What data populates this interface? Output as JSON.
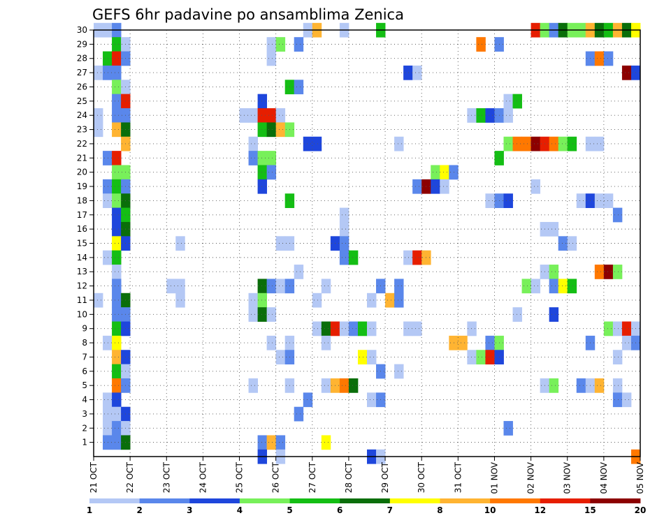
{
  "chart_data": {
    "type": "heatmap",
    "title": "GEFS 6hr padavine po ansamblima Zenica",
    "xlabel": "",
    "ylabel": "",
    "x_tick_labels": [
      "21 OCT",
      "22 OCT",
      "23 OCT",
      "24 OCT",
      "25 OCT",
      "26 OCT",
      "27 OCT",
      "28 OCT",
      "29 OCT",
      "30 OCT",
      "31 OCT",
      "01 NOV",
      "02 NOV",
      "03 NOV",
      "04 NOV",
      "05 NOV"
    ],
    "y_tick_labels": [
      "1",
      "2",
      "3",
      "4",
      "5",
      "6",
      "7",
      "8",
      "9",
      "10",
      "11",
      "12",
      "13",
      "14",
      "15",
      "16",
      "17",
      "18",
      "19",
      "20",
      "21",
      "22",
      "23",
      "24",
      "25",
      "26",
      "27",
      "28",
      "29",
      "30"
    ],
    "xlim_steps": [
      0,
      60
    ],
    "ylim": [
      0,
      30
    ],
    "grid": true,
    "colorbar": {
      "position": "bottom",
      "labels": [
        "1",
        "2",
        "3",
        "4",
        "5",
        "6",
        "7",
        "8",
        "10",
        "12",
        "15",
        "20"
      ],
      "colors": [
        "#b4c8f5",
        "#5a87eb",
        "#1e46dc",
        "#78f05a",
        "#14be14",
        "#0a6e0a",
        "#ffff00",
        "#ffb432",
        "#ff7800",
        "#e61e00",
        "#8c0000"
      ]
    },
    "cells": [
      [
        30,
        0,
        1
      ],
      [
        30,
        1,
        1
      ],
      [
        30,
        2,
        2
      ],
      [
        30,
        23,
        1
      ],
      [
        30,
        24,
        8
      ],
      [
        30,
        27,
        1
      ],
      [
        30,
        31,
        5
      ],
      [
        30,
        48,
        10
      ],
      [
        30,
        49,
        4
      ],
      [
        30,
        50,
        2
      ],
      [
        30,
        51,
        6
      ],
      [
        30,
        52,
        4
      ],
      [
        30,
        53,
        4
      ],
      [
        30,
        54,
        8
      ],
      [
        30,
        55,
        6
      ],
      [
        30,
        56,
        5
      ],
      [
        30,
        57,
        8
      ],
      [
        30,
        58,
        6
      ],
      [
        30,
        59,
        7
      ],
      [
        29,
        2,
        5
      ],
      [
        29,
        3,
        1
      ],
      [
        29,
        19,
        1
      ],
      [
        29,
        20,
        4
      ],
      [
        29,
        22,
        2
      ],
      [
        29,
        42,
        9
      ],
      [
        29,
        44,
        2
      ],
      [
        28,
        1,
        5
      ],
      [
        28,
        2,
        10
      ],
      [
        28,
        3,
        2
      ],
      [
        28,
        19,
        1
      ],
      [
        28,
        54,
        2
      ],
      [
        28,
        55,
        9
      ],
      [
        28,
        56,
        2
      ],
      [
        27,
        0,
        1
      ],
      [
        27,
        1,
        2
      ],
      [
        27,
        2,
        2
      ],
      [
        27,
        34,
        3
      ],
      [
        27,
        35,
        1
      ],
      [
        27,
        58,
        11
      ],
      [
        27,
        59,
        3
      ],
      [
        26,
        2,
        4
      ],
      [
        26,
        3,
        1
      ],
      [
        26,
        21,
        5
      ],
      [
        26,
        22,
        2
      ],
      [
        25,
        2,
        2
      ],
      [
        25,
        3,
        10
      ],
      [
        25,
        18,
        3
      ],
      [
        25,
        45,
        1
      ],
      [
        25,
        46,
        5
      ],
      [
        24,
        0,
        1
      ],
      [
        24,
        2,
        2
      ],
      [
        24,
        3,
        2
      ],
      [
        24,
        16,
        1
      ],
      [
        24,
        17,
        1
      ],
      [
        24,
        18,
        10
      ],
      [
        24,
        19,
        10
      ],
      [
        24,
        20,
        1
      ],
      [
        24,
        41,
        1
      ],
      [
        24,
        42,
        5
      ],
      [
        24,
        43,
        3
      ],
      [
        24,
        44,
        2
      ],
      [
        24,
        45,
        1
      ],
      [
        23,
        0,
        1
      ],
      [
        23,
        2,
        8
      ],
      [
        23,
        3,
        6
      ],
      [
        23,
        18,
        5
      ],
      [
        23,
        19,
        6
      ],
      [
        23,
        20,
        8
      ],
      [
        23,
        21,
        4
      ],
      [
        22,
        3,
        8
      ],
      [
        22,
        17,
        1
      ],
      [
        22,
        23,
        3
      ],
      [
        22,
        24,
        3
      ],
      [
        22,
        33,
        1
      ],
      [
        22,
        45,
        4
      ],
      [
        22,
        46,
        9
      ],
      [
        22,
        47,
        9
      ],
      [
        22,
        48,
        11
      ],
      [
        22,
        49,
        10
      ],
      [
        22,
        50,
        9
      ],
      [
        22,
        51,
        4
      ],
      [
        22,
        52,
        5
      ],
      [
        22,
        54,
        1
      ],
      [
        22,
        55,
        1
      ],
      [
        21,
        1,
        2
      ],
      [
        21,
        2,
        10
      ],
      [
        21,
        17,
        2
      ],
      [
        21,
        18,
        4
      ],
      [
        21,
        19,
        4
      ],
      [
        21,
        44,
        5
      ],
      [
        20,
        2,
        4
      ],
      [
        20,
        3,
        4
      ],
      [
        20,
        18,
        5
      ],
      [
        20,
        19,
        2
      ],
      [
        20,
        37,
        4
      ],
      [
        20,
        38,
        7
      ],
      [
        20,
        39,
        2
      ],
      [
        19,
        1,
        2
      ],
      [
        19,
        2,
        5
      ],
      [
        19,
        3,
        2
      ],
      [
        19,
        18,
        3
      ],
      [
        19,
        35,
        2
      ],
      [
        19,
        36,
        11
      ],
      [
        19,
        37,
        3
      ],
      [
        19,
        38,
        1
      ],
      [
        19,
        48,
        1
      ],
      [
        18,
        1,
        1
      ],
      [
        18,
        2,
        4
      ],
      [
        18,
        3,
        6
      ],
      [
        18,
        21,
        5
      ],
      [
        18,
        43,
        1
      ],
      [
        18,
        44,
        2
      ],
      [
        18,
        45,
        3
      ],
      [
        18,
        53,
        1
      ],
      [
        18,
        54,
        3
      ],
      [
        18,
        55,
        1
      ],
      [
        18,
        56,
        1
      ],
      [
        17,
        2,
        3
      ],
      [
        17,
        3,
        5
      ],
      [
        17,
        27,
        1
      ],
      [
        17,
        57,
        2
      ],
      [
        16,
        2,
        3
      ],
      [
        16,
        3,
        6
      ],
      [
        16,
        27,
        1
      ],
      [
        16,
        49,
        1
      ],
      [
        16,
        50,
        1
      ],
      [
        15,
        2,
        7
      ],
      [
        15,
        3,
        3
      ],
      [
        15,
        9,
        1
      ],
      [
        15,
        20,
        1
      ],
      [
        15,
        21,
        1
      ],
      [
        15,
        26,
        3
      ],
      [
        15,
        27,
        2
      ],
      [
        15,
        51,
        2
      ],
      [
        15,
        52,
        1
      ],
      [
        14,
        1,
        1
      ],
      [
        14,
        2,
        5
      ],
      [
        14,
        27,
        2
      ],
      [
        14,
        28,
        5
      ],
      [
        14,
        34,
        1
      ],
      [
        14,
        35,
        10
      ],
      [
        14,
        36,
        8
      ],
      [
        13,
        2,
        1
      ],
      [
        13,
        22,
        1
      ],
      [
        13,
        49,
        1
      ],
      [
        13,
        50,
        4
      ],
      [
        13,
        55,
        9
      ],
      [
        13,
        56,
        11
      ],
      [
        13,
        57,
        4
      ],
      [
        12,
        2,
        2
      ],
      [
        12,
        8,
        1
      ],
      [
        12,
        9,
        1
      ],
      [
        12,
        18,
        6
      ],
      [
        12,
        19,
        2
      ],
      [
        12,
        20,
        1
      ],
      [
        12,
        21,
        2
      ],
      [
        12,
        25,
        1
      ],
      [
        12,
        31,
        2
      ],
      [
        12,
        33,
        2
      ],
      [
        12,
        47,
        4
      ],
      [
        12,
        48,
        1
      ],
      [
        12,
        50,
        2
      ],
      [
        12,
        51,
        7
      ],
      [
        12,
        52,
        5
      ],
      [
        11,
        0,
        1
      ],
      [
        11,
        2,
        2
      ],
      [
        11,
        3,
        6
      ],
      [
        11,
        9,
        1
      ],
      [
        11,
        17,
        1
      ],
      [
        11,
        18,
        4
      ],
      [
        11,
        24,
        1
      ],
      [
        11,
        30,
        1
      ],
      [
        11,
        32,
        8
      ],
      [
        11,
        33,
        2
      ],
      [
        10,
        2,
        2
      ],
      [
        10,
        3,
        2
      ],
      [
        10,
        17,
        1
      ],
      [
        10,
        18,
        6
      ],
      [
        10,
        19,
        1
      ],
      [
        10,
        46,
        1
      ],
      [
        10,
        50,
        3
      ],
      [
        9,
        2,
        5
      ],
      [
        9,
        3,
        3
      ],
      [
        9,
        24,
        1
      ],
      [
        9,
        25,
        6
      ],
      [
        9,
        26,
        10
      ],
      [
        9,
        27,
        1
      ],
      [
        9,
        28,
        2
      ],
      [
        9,
        29,
        5
      ],
      [
        9,
        30,
        1
      ],
      [
        9,
        34,
        1
      ],
      [
        9,
        35,
        1
      ],
      [
        9,
        41,
        1
      ],
      [
        9,
        56,
        4
      ],
      [
        9,
        57,
        1
      ],
      [
        9,
        58,
        10
      ],
      [
        9,
        59,
        1
      ],
      [
        8,
        1,
        1
      ],
      [
        8,
        2,
        7
      ],
      [
        8,
        19,
        1
      ],
      [
        8,
        21,
        1
      ],
      [
        8,
        25,
        1
      ],
      [
        8,
        39,
        8
      ],
      [
        8,
        40,
        8
      ],
      [
        8,
        43,
        2
      ],
      [
        8,
        44,
        4
      ],
      [
        8,
        54,
        2
      ],
      [
        8,
        58,
        1
      ],
      [
        8,
        59,
        2
      ],
      [
        7,
        2,
        8
      ],
      [
        7,
        3,
        3
      ],
      [
        7,
        20,
        1
      ],
      [
        7,
        21,
        2
      ],
      [
        7,
        29,
        7
      ],
      [
        7,
        30,
        1
      ],
      [
        7,
        41,
        1
      ],
      [
        7,
        42,
        4
      ],
      [
        7,
        43,
        10
      ],
      [
        7,
        44,
        3
      ],
      [
        7,
        57,
        1
      ],
      [
        6,
        2,
        5
      ],
      [
        6,
        3,
        1
      ],
      [
        6,
        31,
        2
      ],
      [
        6,
        33,
        1
      ],
      [
        5,
        2,
        9
      ],
      [
        5,
        3,
        2
      ],
      [
        5,
        17,
        1
      ],
      [
        5,
        21,
        1
      ],
      [
        5,
        25,
        1
      ],
      [
        5,
        26,
        8
      ],
      [
        5,
        27,
        9
      ],
      [
        5,
        28,
        6
      ],
      [
        5,
        49,
        1
      ],
      [
        5,
        50,
        4
      ],
      [
        5,
        53,
        2
      ],
      [
        5,
        54,
        1
      ],
      [
        5,
        55,
        8
      ],
      [
        5,
        57,
        1
      ],
      [
        4,
        1,
        1
      ],
      [
        4,
        2,
        3
      ],
      [
        4,
        23,
        2
      ],
      [
        4,
        30,
        1
      ],
      [
        4,
        31,
        2
      ],
      [
        4,
        57,
        2
      ],
      [
        4,
        58,
        1
      ],
      [
        3,
        1,
        1
      ],
      [
        3,
        2,
        1
      ],
      [
        3,
        3,
        3
      ],
      [
        3,
        22,
        2
      ],
      [
        2,
        1,
        1
      ],
      [
        2,
        2,
        2
      ],
      [
        2,
        3,
        1
      ],
      [
        2,
        45,
        2
      ],
      [
        1,
        1,
        2
      ],
      [
        1,
        2,
        2
      ],
      [
        1,
        3,
        6
      ],
      [
        1,
        18,
        2
      ],
      [
        1,
        19,
        8
      ],
      [
        1,
        20,
        2
      ],
      [
        1,
        25,
        7
      ],
      [
        0,
        18,
        3
      ],
      [
        0,
        20,
        1
      ],
      [
        0,
        30,
        3
      ],
      [
        0,
        31,
        1
      ],
      [
        0,
        59,
        9
      ]
    ]
  }
}
